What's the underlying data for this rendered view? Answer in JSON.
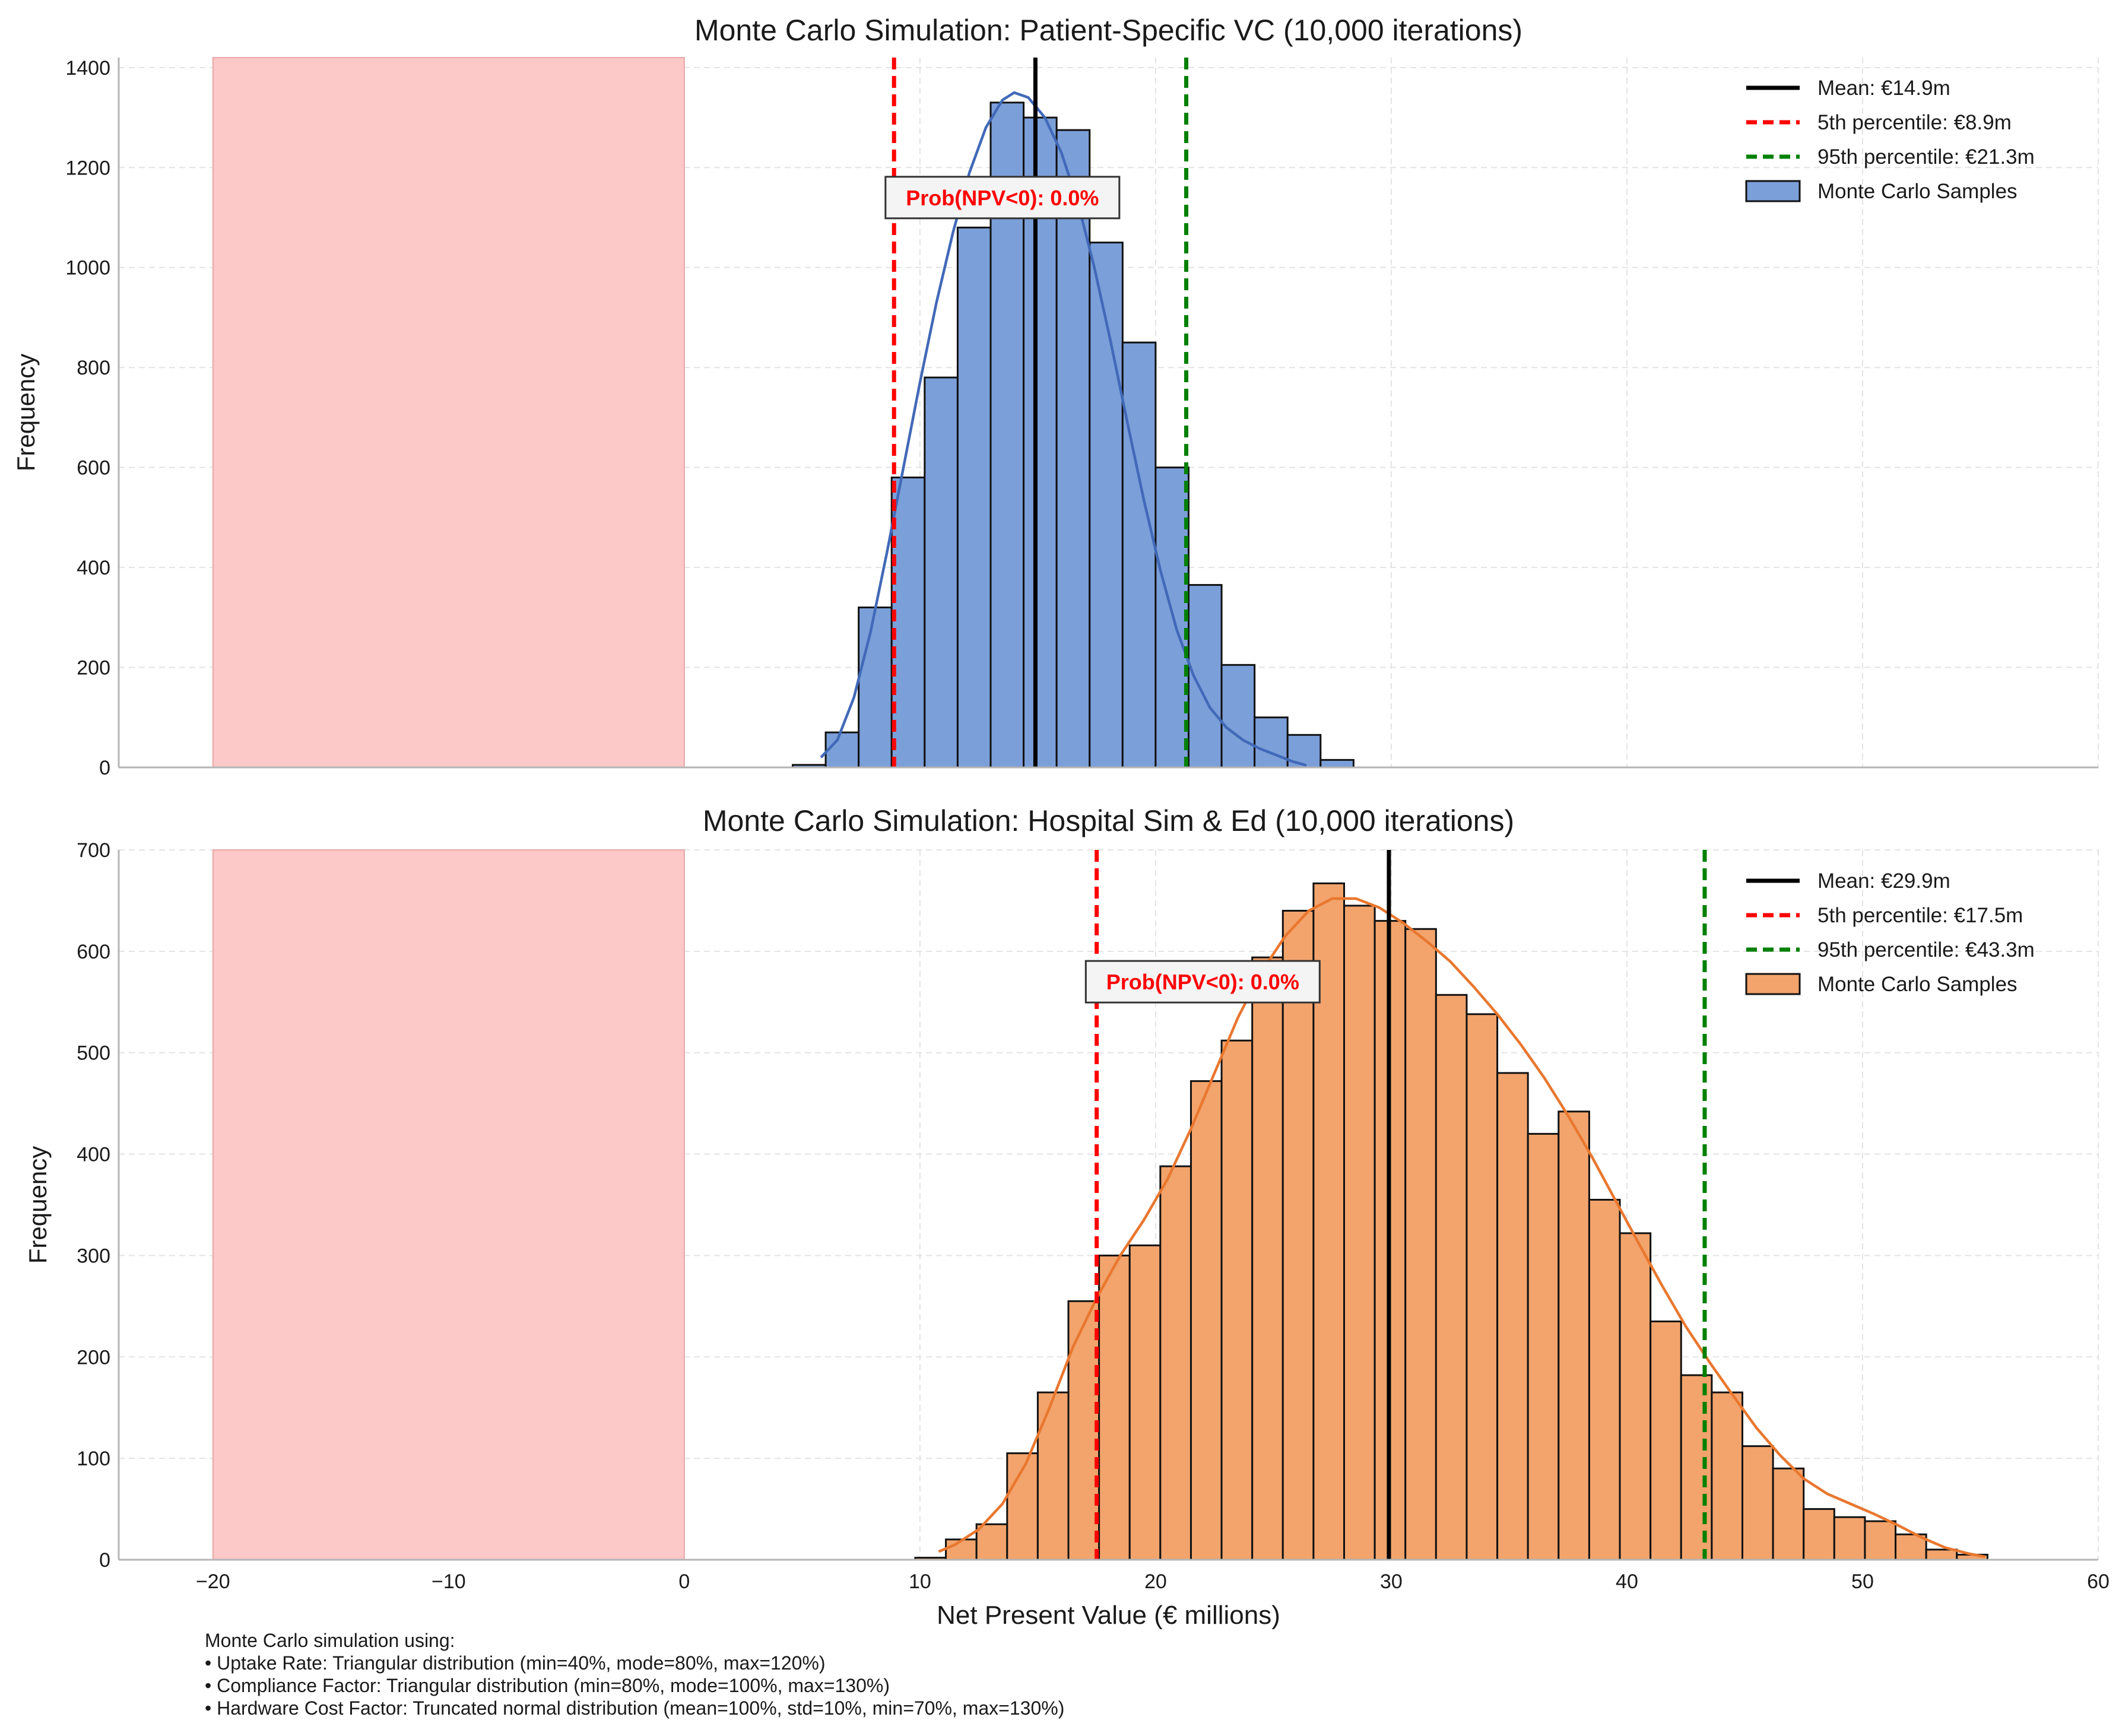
{
  "chart_data": [
    {
      "type": "bar",
      "title": "Monte Carlo Simulation: Patient-Specific VC (10,000 iterations)",
      "ylabel": "Frequency",
      "xlabel": "",
      "xlim": [
        -24,
        60
      ],
      "ylim": [
        0,
        1420
      ],
      "xticks": [
        -20,
        -10,
        0,
        10,
        20,
        30,
        40,
        50,
        60
      ],
      "yticks": [
        0,
        200,
        400,
        600,
        800,
        1000,
        1200,
        1400
      ],
      "grid": true,
      "legend_position": "top-right",
      "colors": {
        "bars": "#7b9fd8",
        "bar_edge": "#111111",
        "kde": "#4169b8",
        "shade": "#fcc8c8",
        "shade_edge": "#e9a6a8"
      },
      "negative_region": [
        -20,
        0
      ],
      "bin_start": 4.6,
      "bin_width": 1.4,
      "counts": [
        5,
        70,
        320,
        580,
        780,
        1080,
        1330,
        1300,
        1275,
        1050,
        850,
        600,
        365,
        205,
        100,
        65,
        15
      ],
      "kde": [
        [
          5.8,
          20
        ],
        [
          6.5,
          55
        ],
        [
          7.2,
          140
        ],
        [
          7.9,
          270
        ],
        [
          8.6,
          430
        ],
        [
          9.3,
          600
        ],
        [
          10.0,
          770
        ],
        [
          10.7,
          930
        ],
        [
          11.4,
          1070
        ],
        [
          12.1,
          1190
        ],
        [
          12.8,
          1280
        ],
        [
          13.5,
          1335
        ],
        [
          14.0,
          1350
        ],
        [
          14.6,
          1340
        ],
        [
          15.3,
          1300
        ],
        [
          16.0,
          1230
        ],
        [
          16.7,
          1130
        ],
        [
          17.4,
          1000
        ],
        [
          18.1,
          850
        ],
        [
          18.8,
          690
        ],
        [
          19.5,
          535
        ],
        [
          20.2,
          395
        ],
        [
          20.9,
          275
        ],
        [
          21.6,
          185
        ],
        [
          22.3,
          120
        ],
        [
          23.0,
          80
        ],
        [
          23.7,
          55
        ],
        [
          24.4,
          38
        ],
        [
          25.1,
          25
        ],
        [
          25.8,
          12
        ],
        [
          26.4,
          4
        ]
      ],
      "mean": 14.9,
      "p5": 8.9,
      "p95": 21.3,
      "annotation": {
        "text": "Prob(NPV<0): 0.0%",
        "x": 13.5,
        "y": 1140
      },
      "legend": [
        "Mean: €14.9m",
        "5th percentile: €8.9m",
        "95th percentile: €21.3m",
        "Monte Carlo Samples"
      ]
    },
    {
      "type": "bar",
      "title": "Monte Carlo Simulation: Hospital Sim & Ed (10,000 iterations)",
      "ylabel": "Frequency",
      "xlabel": "Net Present Value (€ millions)",
      "xlim": [
        -24,
        60
      ],
      "ylim": [
        0,
        700
      ],
      "xticks": [
        -20,
        -10,
        0,
        10,
        20,
        30,
        40,
        50,
        60
      ],
      "yticks": [
        0,
        100,
        200,
        300,
        400,
        500,
        600,
        700
      ],
      "grid": true,
      "legend_position": "top-right",
      "colors": {
        "bars": "#f2a46c",
        "bar_edge": "#111111",
        "kde": "#e9772e",
        "shade": "#fcc8c8",
        "shade_edge": "#e9a6a8"
      },
      "negative_region": [
        -20,
        0
      ],
      "bin_start": 9.8,
      "bin_width": 1.3,
      "counts": [
        2,
        20,
        35,
        105,
        165,
        255,
        300,
        310,
        388,
        472,
        512,
        594,
        640,
        667,
        645,
        630,
        622,
        557,
        538,
        480,
        420,
        442,
        355,
        322,
        235,
        182,
        165,
        112,
        90,
        50,
        42,
        38,
        25,
        10,
        5
      ],
      "kde": [
        [
          10.8,
          8
        ],
        [
          11.5,
          15
        ],
        [
          12.5,
          30
        ],
        [
          13.5,
          55
        ],
        [
          14.5,
          95
        ],
        [
          15.5,
          150
        ],
        [
          16.5,
          210
        ],
        [
          17.5,
          258
        ],
        [
          18.5,
          300
        ],
        [
          19.5,
          335
        ],
        [
          20.5,
          375
        ],
        [
          21.5,
          425
        ],
        [
          22.5,
          480
        ],
        [
          23.5,
          535
        ],
        [
          24.5,
          580
        ],
        [
          25.5,
          615
        ],
        [
          26.5,
          640
        ],
        [
          27.5,
          652
        ],
        [
          28.5,
          652
        ],
        [
          29.5,
          643
        ],
        [
          30.5,
          628
        ],
        [
          31.5,
          610
        ],
        [
          32.5,
          590
        ],
        [
          33.5,
          565
        ],
        [
          34.5,
          538
        ],
        [
          35.5,
          508
        ],
        [
          36.5,
          475
        ],
        [
          37.5,
          438
        ],
        [
          38.5,
          398
        ],
        [
          39.5,
          355
        ],
        [
          40.5,
          312
        ],
        [
          41.5,
          270
        ],
        [
          42.5,
          230
        ],
        [
          43.5,
          195
        ],
        [
          44.5,
          162
        ],
        [
          45.5,
          130
        ],
        [
          46.5,
          103
        ],
        [
          47.5,
          80
        ],
        [
          48.5,
          65
        ],
        [
          49.5,
          55
        ],
        [
          50.5,
          45
        ],
        [
          51.5,
          34
        ],
        [
          52.5,
          22
        ],
        [
          53.5,
          12
        ],
        [
          54.5,
          6
        ],
        [
          55.2,
          3
        ]
      ],
      "mean": 29.9,
      "p5": 17.5,
      "p95": 43.3,
      "annotation": {
        "text": "Prob(NPV<0): 0.0%",
        "x": 22.0,
        "y": 570
      },
      "legend": [
        "Mean: €29.9m",
        "5th percentile: €17.5m",
        "95th percentile: €43.3m",
        "Monte Carlo Samples"
      ]
    }
  ],
  "footnote": [
    "Monte Carlo simulation using:",
    "• Uptake Rate: Triangular distribution (min=40%, mode=80%, max=120%)",
    "• Compliance Factor: Triangular distribution (min=80%, mode=100%, max=130%)",
    "• Hardware Cost Factor: Truncated normal distribution (mean=100%, std=10%, min=70%, max=130%)"
  ]
}
